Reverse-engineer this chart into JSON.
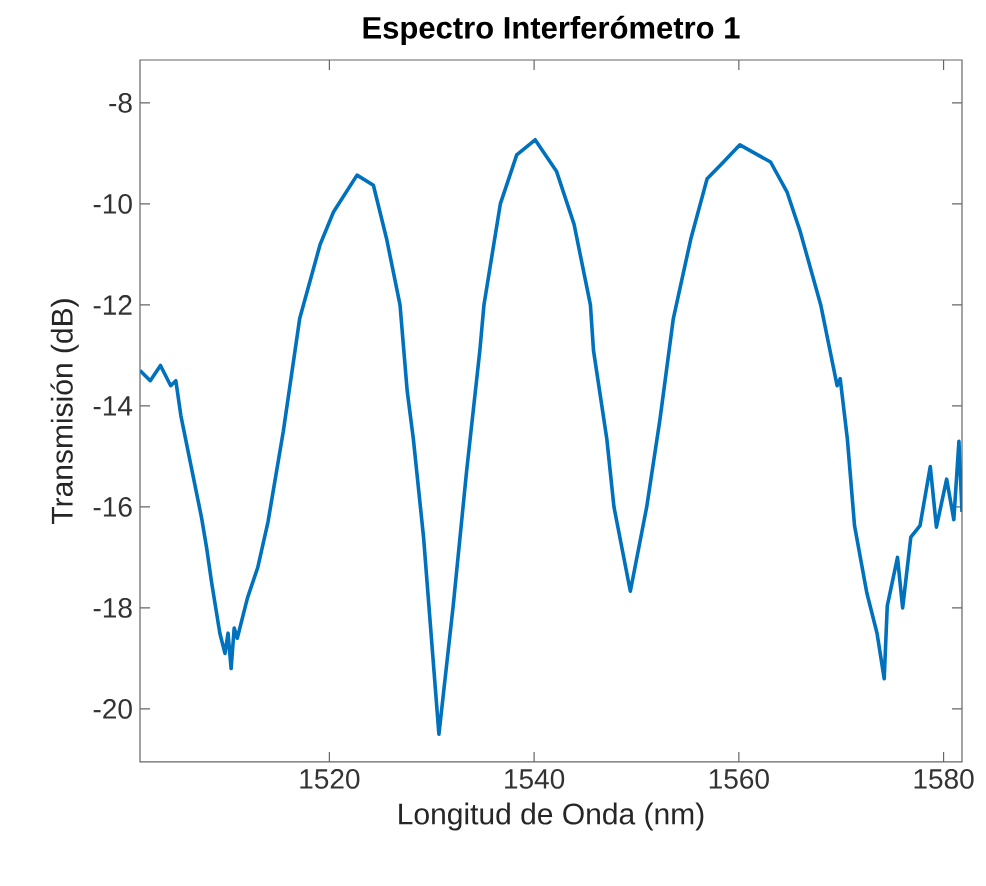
{
  "chart_data": {
    "type": "line",
    "title": "Espectro Interferómetro 1",
    "xlabel": "Longitud de Onda (nm)",
    "ylabel": "Transmisión (dB)",
    "xlim": [
      1501.5,
      1581.8
    ],
    "ylim": [
      -21.05,
      -7.15
    ],
    "xticks": [
      1520,
      1540,
      1560,
      1580
    ],
    "yticks": [
      -20,
      -18,
      -16,
      -14,
      -12,
      -10,
      -8
    ],
    "grid": false,
    "marker": "none",
    "line_style": "solid",
    "series": [
      {
        "color": "#0072bd",
        "x": [
          1501.5,
          1502.5,
          1503.5,
          1504.5,
          1505.0,
          1505.5,
          1506.5,
          1507.5,
          1508.0,
          1508.5,
          1509.3,
          1509.8,
          1510.1,
          1510.4,
          1510.7,
          1511.0,
          1512.0,
          1513.0,
          1514.0,
          1515.5,
          1517.1,
          1519.1,
          1520.4,
          1522.7,
          1524.3,
          1525.6,
          1526.9,
          1527.6,
          1528.2,
          1529.2,
          1530.7,
          1532.1,
          1533.4,
          1534.7,
          1535.1,
          1536.7,
          1538.3,
          1540.1,
          1542.2,
          1543.9,
          1545.5,
          1545.8,
          1547.1,
          1547.8,
          1549.4,
          1551.0,
          1552.3,
          1553.6,
          1555.3,
          1556.9,
          1558.5,
          1560.1,
          1563.1,
          1564.7,
          1566.0,
          1568.0,
          1569.6,
          1569.9,
          1570.6,
          1571.3,
          1572.5,
          1573.5,
          1574.2,
          1574.5,
          1575.5,
          1576.0,
          1576.8,
          1577.7,
          1578.7,
          1579.3,
          1580.3,
          1581.0,
          1581.5,
          1581.8
        ],
        "values": [
          -13.3,
          -13.5,
          -13.2,
          -13.6,
          -13.5,
          -14.2,
          -15.2,
          -16.2,
          -16.8,
          -17.5,
          -18.5,
          -18.9,
          -18.5,
          -19.2,
          -18.4,
          -18.6,
          -17.8,
          -17.2,
          -16.3,
          -14.5,
          -12.27,
          -10.8,
          -10.16,
          -9.43,
          -9.63,
          -10.7,
          -12.0,
          -13.7,
          -14.65,
          -16.6,
          -20.5,
          -17.95,
          -15.3,
          -12.9,
          -12.0,
          -10.0,
          -9.03,
          -8.73,
          -9.36,
          -10.4,
          -12.0,
          -12.9,
          -14.65,
          -16.0,
          -17.67,
          -16.0,
          -14.26,
          -12.27,
          -10.7,
          -9.5,
          -9.17,
          -8.83,
          -9.17,
          -9.76,
          -10.55,
          -12.0,
          -13.6,
          -13.46,
          -14.65,
          -16.37,
          -17.7,
          -18.5,
          -19.4,
          -17.96,
          -17.0,
          -18.0,
          -16.6,
          -16.37,
          -15.2,
          -16.4,
          -15.45,
          -16.25,
          -14.7,
          -16.1
        ]
      }
    ]
  }
}
